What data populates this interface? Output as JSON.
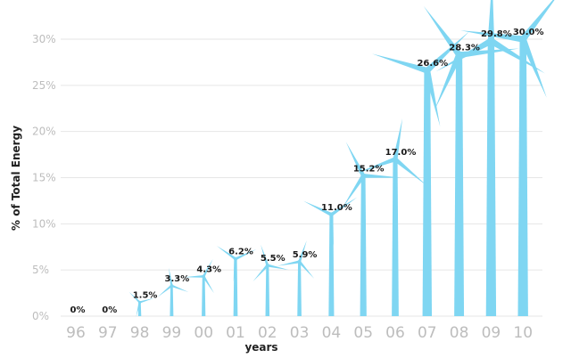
{
  "chart_data": {
    "type": "bar",
    "title": "",
    "xlabel": "years",
    "ylabel": "% of Total Energy",
    "ylim": [
      0,
      30
    ],
    "yticks": [
      "0%",
      "5%",
      "10%",
      "15%",
      "20%",
      "25%",
      "30%"
    ],
    "categories": [
      "96",
      "97",
      "98",
      "99",
      "00",
      "01",
      "02",
      "03",
      "04",
      "05",
      "06",
      "07",
      "08",
      "09",
      "10"
    ],
    "values": [
      0,
      0,
      1.5,
      3.3,
      4.3,
      6.2,
      5.5,
      5.9,
      11.0,
      15.2,
      17.0,
      26.6,
      28.3,
      29.8,
      30.0
    ],
    "labels": [
      "0%",
      "0%",
      "1.5%",
      "3.3%",
      "4.3%",
      "6.2%",
      "5.5%",
      "5.9%",
      "11.0%",
      "15.2%",
      "17.0%",
      "26.6%",
      "28.3%",
      "29.8%",
      "30.0%"
    ],
    "grid": true,
    "mark_style": "wind-turbine",
    "colors": {
      "turbine": "#7fd6f2",
      "grid": "#e6e6e6",
      "tick": "#bdbdbd"
    }
  }
}
